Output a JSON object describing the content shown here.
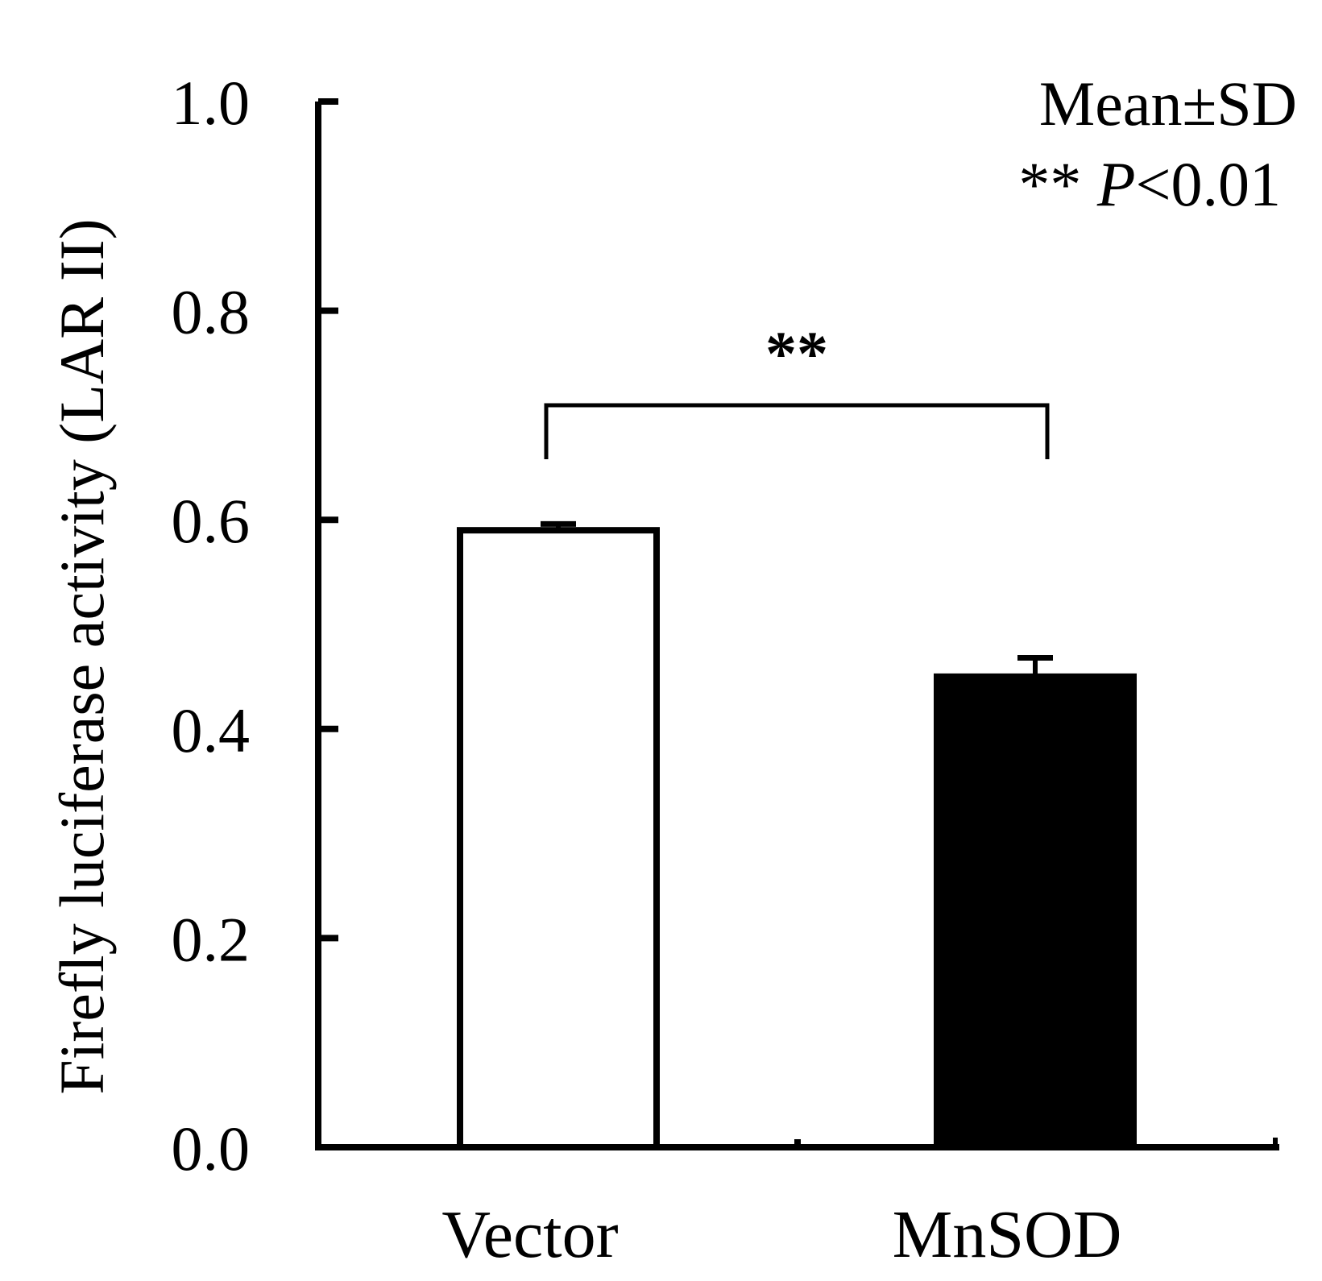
{
  "chart_data": {
    "type": "bar",
    "title": "",
    "xlabel": "",
    "ylabel": "Firefly luciferase activity (LAR II)",
    "ylim": [
      0,
      1.0
    ],
    "yticks": [
      "0.0",
      "0.2",
      "0.4",
      "0.6",
      "0.8",
      "1.0"
    ],
    "grid": false,
    "categories": [
      "Vector",
      "MnSOD"
    ],
    "values": [
      0.59,
      0.45
    ],
    "errors": [
      0.006,
      0.018
    ],
    "bar_fill": [
      "#ffffff",
      "#000000"
    ],
    "annotations": {
      "stats_line1": "Mean±SD",
      "stats_line2_stars": "** ",
      "stats_line2_p": "P",
      "stats_line2_rest": "<0.01",
      "significance": "**",
      "comparison": [
        "Vector",
        "MnSOD"
      ]
    }
  }
}
